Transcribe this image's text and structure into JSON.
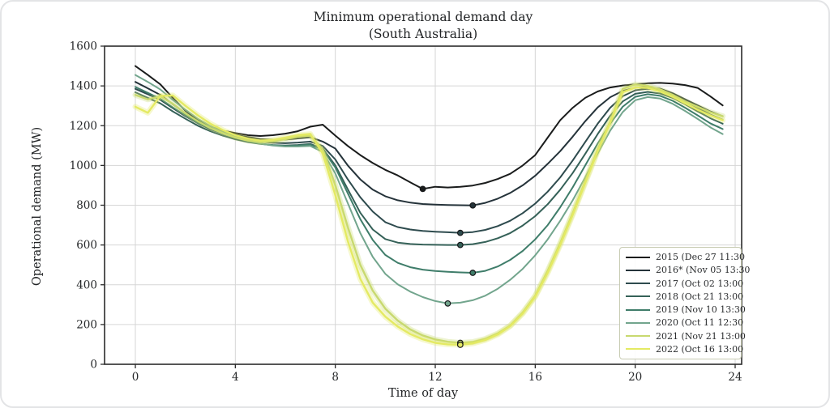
{
  "chart_data": {
    "type": "line",
    "title": "Minimum operational demand day",
    "subtitle": "(South Australia)",
    "xlabel": "Time of day",
    "ylabel": "Operational demand (MW)",
    "xlim": [
      -1.3,
      24.3
    ],
    "ylim": [
      0,
      1600
    ],
    "x_ticks": [
      0,
      4,
      8,
      12,
      16,
      20,
      24
    ],
    "y_ticks": [
      0,
      200,
      400,
      600,
      800,
      1000,
      1200,
      1400,
      1600
    ],
    "grid": true,
    "legend_position": "lower right",
    "x_hours": [
      0,
      0.5,
      1,
      1.5,
      2,
      2.5,
      3,
      3.5,
      4,
      4.5,
      5,
      5.5,
      6,
      6.5,
      7,
      7.5,
      8,
      8.5,
      9,
      9.5,
      10,
      10.5,
      11,
      11.5,
      12,
      12.5,
      13,
      13.5,
      14,
      14.5,
      15,
      15.5,
      16,
      16.5,
      17,
      17.5,
      18,
      18.5,
      19,
      19.5,
      20,
      20.5,
      21,
      21.5,
      22,
      22.5,
      23,
      23.5
    ],
    "series": [
      {
        "year": "2015",
        "name": "2015 (Dec 27 11:30",
        "color": "#1a1c1c",
        "width": 2,
        "halo": false,
        "min_point": {
          "x": 11.5,
          "y": 882
        },
        "values": [
          1500,
          1455,
          1408,
          1340,
          1275,
          1228,
          1195,
          1175,
          1163,
          1152,
          1148,
          1152,
          1160,
          1172,
          1195,
          1205,
          1150,
          1098,
          1052,
          1012,
          978,
          950,
          915,
          882,
          893,
          889,
          893,
          899,
          912,
          932,
          958,
          1000,
          1052,
          1140,
          1228,
          1290,
          1340,
          1372,
          1392,
          1402,
          1408,
          1413,
          1415,
          1412,
          1404,
          1390,
          1348,
          1302
        ]
      },
      {
        "year": "2016",
        "name": "2016* (Nov 05 13:30",
        "color": "#25333a",
        "width": 2,
        "halo": false,
        "min_point": {
          "x": 13.5,
          "y": 799
        },
        "values": [
          1420,
          1388,
          1355,
          1308,
          1262,
          1222,
          1190,
          1170,
          1155,
          1143,
          1133,
          1129,
          1130,
          1136,
          1142,
          1120,
          1085,
          1000,
          930,
          878,
          845,
          825,
          813,
          806,
          803,
          801,
          800,
          799,
          812,
          833,
          862,
          900,
          948,
          1008,
          1072,
          1145,
          1222,
          1292,
          1343,
          1375,
          1391,
          1395,
          1386,
          1363,
          1333,
          1302,
          1272,
          1248
        ]
      },
      {
        "year": "2017",
        "name": "2017 (Oct 02 13:00",
        "color": "#2e4b4e",
        "width": 2,
        "halo": false,
        "min_point": {
          "x": 13,
          "y": 661
        },
        "values": [
          1385,
          1358,
          1330,
          1288,
          1248,
          1212,
          1182,
          1160,
          1143,
          1130,
          1120,
          1114,
          1112,
          1115,
          1120,
          1098,
          1030,
          930,
          840,
          768,
          715,
          690,
          678,
          671,
          667,
          664,
          661,
          665,
          676,
          695,
          722,
          760,
          808,
          868,
          940,
          1025,
          1118,
          1210,
          1290,
          1348,
          1378,
          1386,
          1378,
          1355,
          1324,
          1290,
          1256,
          1230
        ]
      },
      {
        "year": "2018",
        "name": "2018 (Oct 21 13:00",
        "color": "#356158",
        "width": 2,
        "halo": false,
        "min_point": {
          "x": 13,
          "y": 600
        },
        "values": [
          1368,
          1340,
          1312,
          1272,
          1235,
          1200,
          1172,
          1150,
          1132,
          1118,
          1108,
          1102,
          1100,
          1103,
          1108,
          1085,
          1000,
          880,
          762,
          678,
          630,
          612,
          605,
          602,
          601,
          600,
          600,
          604,
          615,
          634,
          660,
          698,
          745,
          805,
          878,
          962,
          1058,
          1158,
          1250,
          1322,
          1360,
          1370,
          1362,
          1340,
          1308,
          1272,
          1238,
          1210
        ]
      },
      {
        "year": "2019",
        "name": "2019 (Nov 10 13:30",
        "color": "#3f7d6a",
        "width": 2,
        "halo": false,
        "min_point": {
          "x": 13.5,
          "y": 460
        },
        "values": [
          1395,
          1365,
          1335,
          1292,
          1252,
          1215,
          1185,
          1160,
          1140,
          1122,
          1110,
          1102,
          1098,
          1100,
          1105,
          1080,
          990,
          860,
          730,
          625,
          550,
          510,
          488,
          476,
          469,
          465,
          462,
          460,
          470,
          492,
          525,
          570,
          628,
          700,
          790,
          890,
          1000,
          1110,
          1210,
          1295,
          1345,
          1358,
          1350,
          1325,
          1290,
          1252,
          1212,
          1183
        ]
      },
      {
        "year": "2020",
        "name": "2020 (Oct 11 12:30",
        "color": "#72a58d",
        "width": 2,
        "halo": false,
        "min_point": {
          "x": 12.5,
          "y": 306
        },
        "values": [
          1455,
          1420,
          1382,
          1330,
          1280,
          1235,
          1198,
          1168,
          1145,
          1125,
          1110,
          1100,
          1095,
          1095,
          1098,
          1068,
          960,
          810,
          660,
          540,
          455,
          402,
          365,
          338,
          318,
          306,
          310,
          322,
          345,
          380,
          425,
          480,
          548,
          628,
          722,
          825,
          940,
          1060,
          1175,
          1268,
          1328,
          1344,
          1336,
          1310,
          1274,
          1234,
          1192,
          1158
        ]
      },
      {
        "year": "2021",
        "name": "2021 (Nov 21 13:00",
        "color": "#c8d96f",
        "width": 2.4,
        "halo": true,
        "min_point": {
          "x": 13,
          "y": 108
        },
        "values": [
          1355,
          1332,
          1348,
          1310,
          1262,
          1222,
          1188,
          1162,
          1140,
          1125,
          1118,
          1122,
          1132,
          1145,
          1150,
          1080,
          900,
          690,
          500,
          370,
          280,
          220,
          175,
          145,
          125,
          113,
          108,
          112,
          128,
          155,
          195,
          260,
          345,
          470,
          610,
          760,
          920,
          1080,
          1220,
          1385,
          1408,
          1400,
          1382,
          1355,
          1322,
          1295,
          1268,
          1248
        ]
      },
      {
        "year": "2022",
        "name": "2022 (Oct 16 13:00",
        "color": "#e4ea63",
        "width": 2.4,
        "halo": true,
        "min_point": {
          "x": 13,
          "y": 98
        },
        "values": [
          1295,
          1265,
          1350,
          1352,
          1300,
          1252,
          1210,
          1178,
          1152,
          1135,
          1125,
          1128,
          1140,
          1152,
          1158,
          1060,
          850,
          620,
          430,
          310,
          240,
          190,
          152,
          126,
          108,
          100,
          98,
          105,
          122,
          150,
          192,
          255,
          340,
          460,
          600,
          752,
          912,
          1072,
          1215,
          1368,
          1392,
          1390,
          1372,
          1345,
          1312,
          1280,
          1252,
          1228
        ]
      }
    ],
    "style": {
      "grid_color": "#d6d6d6",
      "spine_color": "#2b2b2b",
      "tick_text_color": "#26282a",
      "marker_edge_color": "#17191b",
      "legend_border_color": "#c7cbb2"
    }
  }
}
